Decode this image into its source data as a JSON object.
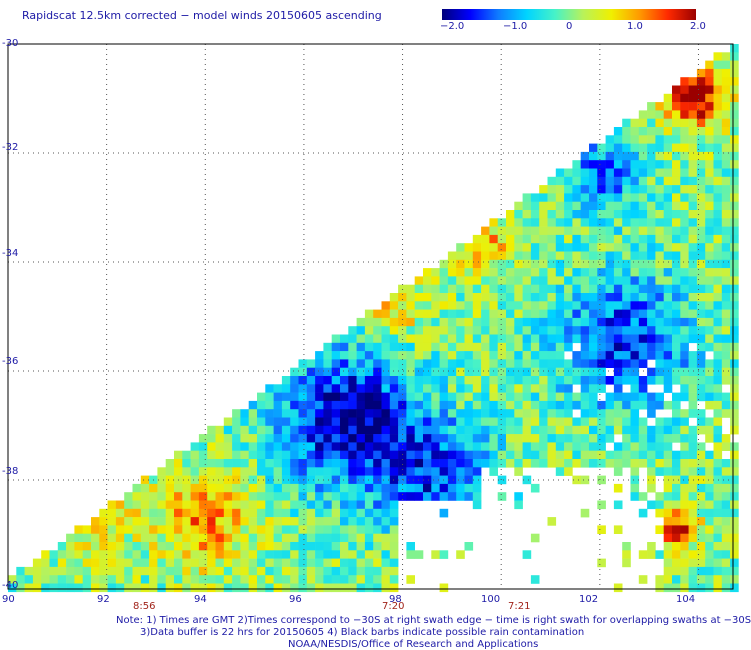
{
  "title": "Rapidscat 12.5km corrected − model winds 20150605 ascending",
  "colorbar": {
    "labels": [
      "−2.0",
      "−1.0",
      "0",
      "1.0",
      "2.0"
    ],
    "min": -2.0,
    "max": 2.0,
    "stops": [
      "#00007a",
      "#0000ff",
      "#0f7cff",
      "#00d4ff",
      "#46f2c8",
      "#b8f25a",
      "#f0f000",
      "#ff9a00",
      "#ff2a00",
      "#9b0000"
    ]
  },
  "map": {
    "lat_labels": [
      "-30",
      "-32",
      "-34",
      "-36",
      "-38",
      "-40"
    ],
    "lon_labels": [
      "90",
      "92",
      "94",
      "96",
      "98",
      "100",
      "102",
      "104"
    ],
    "lat_range": [
      -40,
      -30
    ],
    "lon_range": [
      90,
      104.7
    ],
    "grid": "dotted",
    "time_labels": [
      {
        "text": "8:56",
        "lon": 92.8
      },
      {
        "text": "7:20",
        "lon": 97.9
      },
      {
        "text": "7:21",
        "lon": 100.6
      }
    ]
  },
  "notes": [
    "Note: 1) Times are GMT 2)Times correspond to −30S at right swath edge − time is right swath for overlapping swaths at −30S",
    "3)Data buffer is 22 hrs for 20150605 4) Black barbs indicate possible rain contamination",
    "NOAA/NESDIS/Office of Research and Applications"
  ]
}
